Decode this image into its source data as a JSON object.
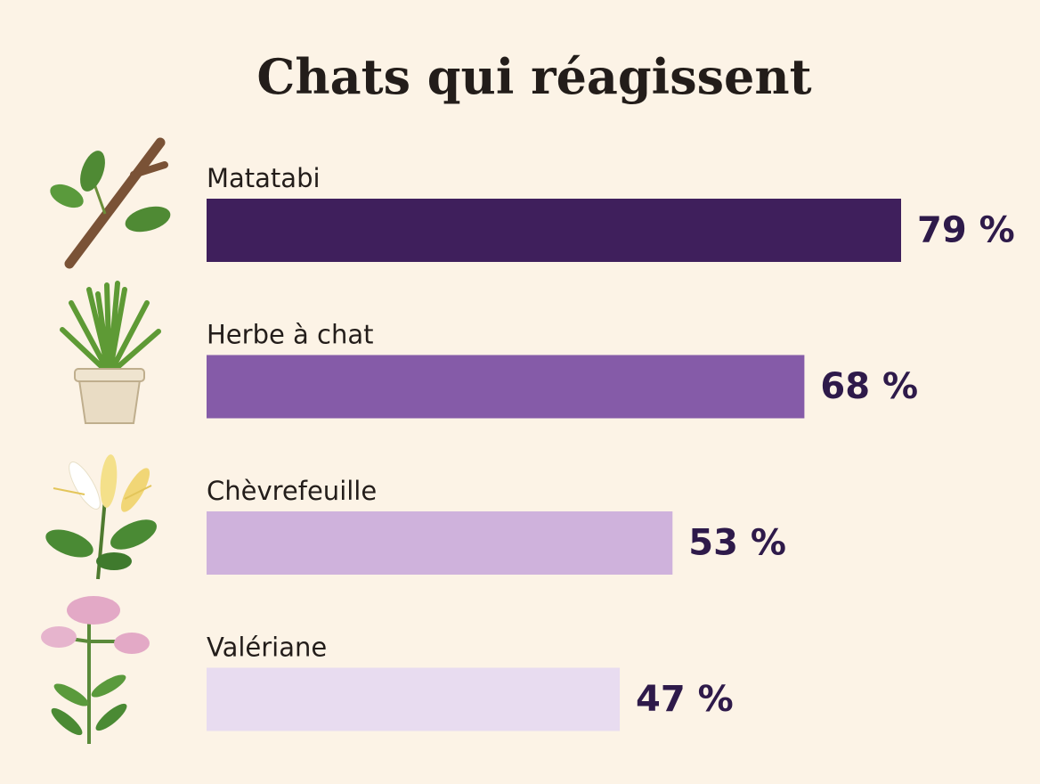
{
  "chart_data": {
    "type": "bar",
    "orientation": "horizontal",
    "title": "Chats qui réagissent",
    "categories": [
      "Matatabi",
      "Herbe à chat",
      "Chèvrefeuille",
      "Valériane"
    ],
    "values": [
      79,
      68,
      53,
      47
    ],
    "value_labels": [
      "79 %",
      "68 %",
      "53 %",
      "47 %"
    ],
    "colors": [
      "#3f1f5c",
      "#855ba8",
      "#cfb2dc",
      "#e8dcf0"
    ]
  }
}
